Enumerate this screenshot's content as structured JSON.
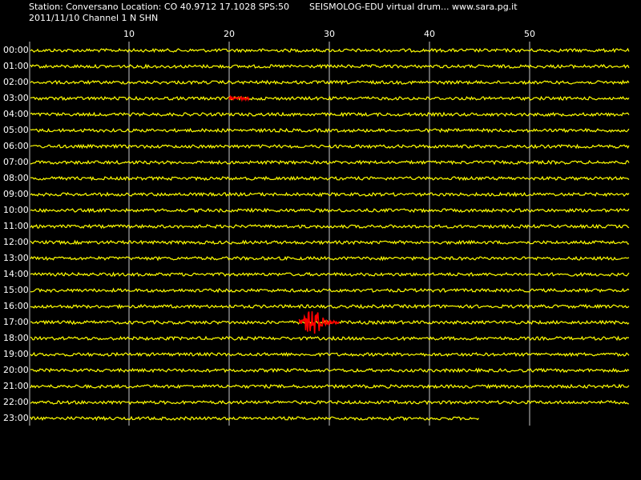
{
  "header": {
    "station": "Station: Conversano Location: CO 40.9712 17.1028 SPS:50",
    "title": "SEISMOLOG-EDU virtual drum... www.sara.pg.it",
    "channel": "2011/11/10  Channel 1 N SHN"
  },
  "axis": {
    "xlim": [
      0,
      60
    ],
    "xticks": [
      10,
      20,
      30,
      40,
      50
    ]
  },
  "rows": [
    "00:00",
    "01:00",
    "02:00",
    "03:00",
    "04:00",
    "05:00",
    "06:00",
    "07:00",
    "08:00",
    "09:00",
    "10:00",
    "11:00",
    "12:00",
    "13:00",
    "14:00",
    "15:00",
    "16:00",
    "17:00",
    "18:00",
    "19:00",
    "20:00",
    "21:00",
    "22:00",
    "23:00"
  ],
  "last_row_end": 45,
  "events": [
    {
      "row": 3,
      "start": 20,
      "end": 22
    },
    {
      "row": 17,
      "start": 27,
      "end": 31
    }
  ]
}
